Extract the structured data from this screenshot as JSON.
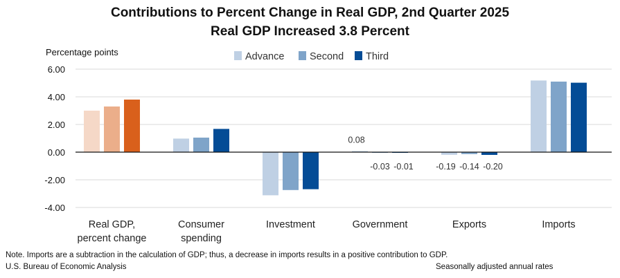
{
  "title": "Contributions to Percent Change in Real GDP, 2nd Quarter 2025",
  "subtitle": "Real GDP Increased 3.8 Percent",
  "note": "Note. Imports are a subtraction in the calculation of GDP; thus, a decrease in imports results in a positive contribution to GDP.",
  "source": "U.S. Bureau of Economic Analysis",
  "rates_note": "Seasonally adjusted annual rates",
  "chart_data": {
    "type": "bar",
    "title": "Contributions to Percent Change in Real GDP, 2nd Quarter 2025",
    "subtitle": "Real GDP Increased 3.8 Percent",
    "ylabel": "Percentage points",
    "ylim": [
      -4,
      6
    ],
    "yticks": [
      "6.00",
      "4.00",
      "2.00",
      "0.00",
      "-2.00",
      "-4.00"
    ],
    "grid": true,
    "legend_position": "top",
    "categories": [
      [
        "Real GDP,",
        "percent change"
      ],
      [
        "Consumer",
        "spending"
      ],
      [
        "Investment"
      ],
      [
        "Government"
      ],
      [
        "Exports"
      ],
      [
        "Imports"
      ]
    ],
    "series": [
      {
        "name": "Advance",
        "values": [
          3.0,
          0.98,
          -3.12,
          0.08,
          -0.19,
          5.18
        ]
      },
      {
        "name": "Second",
        "values": [
          3.3,
          1.05,
          -2.74,
          -0.03,
          -0.14,
          5.1
        ]
      },
      {
        "name": "Third",
        "values": [
          3.8,
          1.68,
          -2.68,
          -0.01,
          -0.2,
          5.02
        ]
      }
    ],
    "data_labels": [
      {
        "category": 3,
        "series": 0,
        "text": "0.08"
      },
      {
        "category": 3,
        "series": 1,
        "text": "-0.03"
      },
      {
        "category": 3,
        "series": 2,
        "text": "-0.01"
      },
      {
        "category": 4,
        "series": 0,
        "text": "-0.19"
      },
      {
        "category": 4,
        "series": 1,
        "text": "-0.14"
      },
      {
        "category": 4,
        "series": 2,
        "text": "-0.20"
      }
    ],
    "colors": {
      "gdp": [
        "#f5d8c7",
        "#ebae8a",
        "#d9601c"
      ],
      "components": [
        "#bfd0e4",
        "#7fa4c9",
        "#044c96"
      ]
    }
  }
}
